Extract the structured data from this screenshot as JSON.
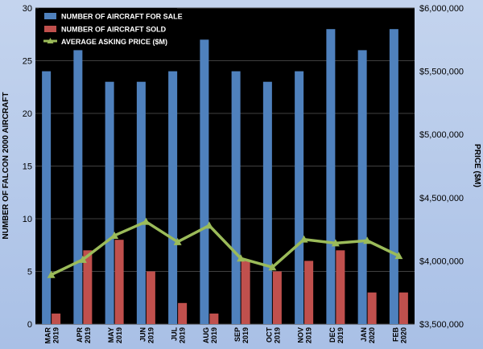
{
  "chart_data": {
    "type": "bar",
    "categories": [
      [
        "MAR",
        "2019"
      ],
      [
        "APR",
        "2019"
      ],
      [
        "MAY",
        "2019"
      ],
      [
        "JUN",
        "2019"
      ],
      [
        "JUL",
        "2019"
      ],
      [
        "AUG",
        "2019"
      ],
      [
        "SEP",
        "2019"
      ],
      [
        "OCT",
        "2019"
      ],
      [
        "NOV",
        "2019"
      ],
      [
        "DEC",
        "2019"
      ],
      [
        "JAN",
        "2020"
      ],
      [
        "FEB",
        "2020"
      ]
    ],
    "series": [
      {
        "name": "NUMBER OF AIRCRAFT FOR SALE",
        "type": "bar",
        "axis": "left",
        "color": "#4f81bd",
        "values": [
          24,
          26,
          23,
          23,
          24,
          27,
          24,
          23,
          24,
          28,
          26,
          28
        ]
      },
      {
        "name": "NUMBER OF AIRCRAFT SOLD",
        "type": "bar",
        "axis": "left",
        "color": "#c0504d",
        "values": [
          1,
          7,
          8,
          5,
          2,
          1,
          6,
          5,
          6,
          7,
          3,
          3
        ]
      },
      {
        "name": "AVERAGE ASKING PRICE ($M)",
        "type": "line",
        "axis": "right",
        "color": "#9bbb59",
        "values": [
          3890000,
          4010000,
          4200000,
          4310000,
          4150000,
          4280000,
          4020000,
          3950000,
          4170000,
          4140000,
          4160000,
          4040000
        ]
      }
    ],
    "y_left": {
      "label": "NUMBER OF FALCON 2000 AIRCRAFT",
      "lim": [
        0,
        30
      ],
      "ticks": [
        "0",
        "5",
        "10",
        "15",
        "20",
        "25",
        "30"
      ]
    },
    "y_right": {
      "label": "PRICE ($M)",
      "lim": [
        3500000,
        6000000
      ],
      "ticks": [
        "$3,500,000",
        "$4,000,000",
        "$4,500,000",
        "$5,000,000",
        "$5,500,000",
        "$6,000,000"
      ]
    },
    "grid": true,
    "legend": "top-left",
    "plot_background": "#000000",
    "grid_color": "#404040"
  }
}
